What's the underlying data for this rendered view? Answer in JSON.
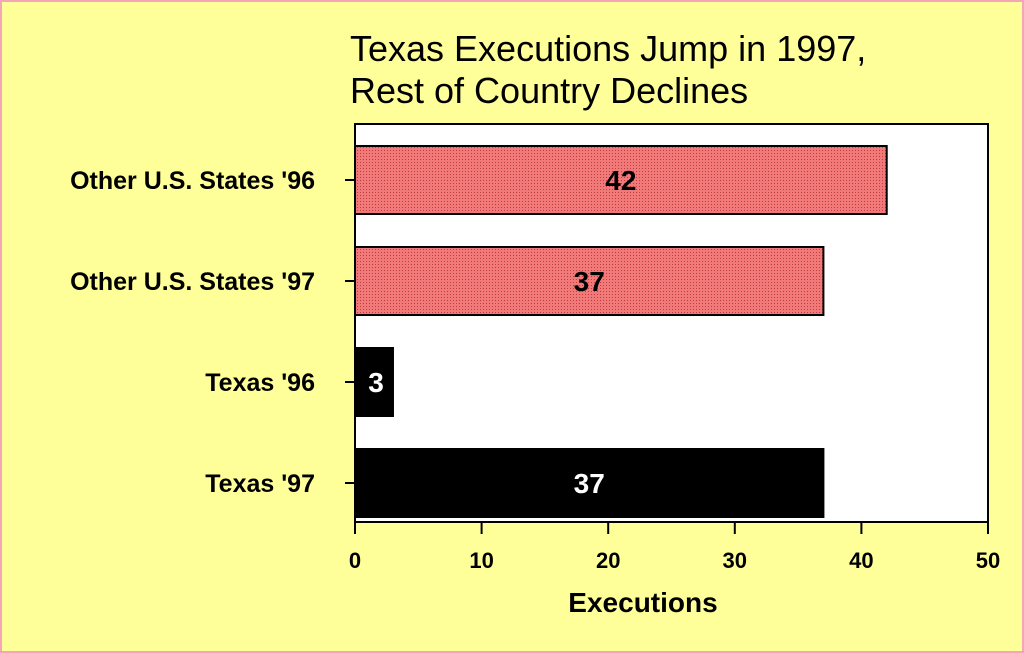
{
  "chart_data": {
    "type": "bar",
    "orientation": "horizontal",
    "title_line1": "Texas Executions Jump in 1997,",
    "title_line2": "Rest of Country Declines",
    "xlabel": "Executions",
    "ylabel": "",
    "xlim": [
      0,
      50
    ],
    "x_ticks": [
      "0",
      "10",
      "20",
      "30",
      "40",
      "50"
    ],
    "grid": false,
    "categories": [
      "Other U.S. States '96",
      "Other U.S. States '97",
      "Texas '96",
      "Texas '97"
    ],
    "values": [
      42,
      37,
      3,
      37
    ],
    "bar_colors": [
      "#f08080",
      "#f08080",
      "#000000",
      "#000000"
    ],
    "label_colors": [
      "#000000",
      "#000000",
      "#ffffff",
      "#ffffff"
    ],
    "colors": {
      "background": "#ffff99",
      "border": "#f4a6b8",
      "plot": "#ffffff",
      "other_states": "#f08080",
      "texas": "#000000"
    }
  }
}
